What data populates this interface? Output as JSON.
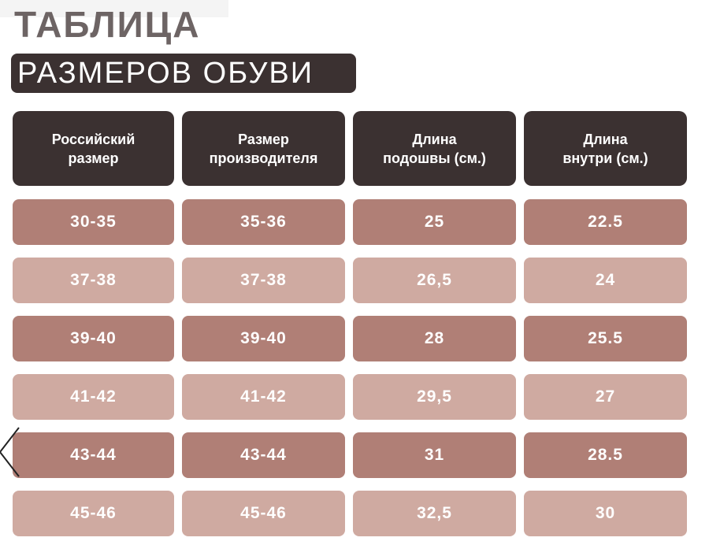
{
  "title": {
    "line1": "ТАБЛИЦА",
    "line2": "РАЗМЕРОВ ОБУВИ"
  },
  "table": {
    "headers": [
      "Российский\nразмер",
      "Размер\nпроизводителя",
      "Длина\nподошвы (см.)",
      "Длина\nвнутри  (см.)"
    ],
    "rows": [
      [
        "30-35",
        "35-36",
        "25",
        "22.5"
      ],
      [
        "37-38",
        "37-38",
        "26,5",
        "24"
      ],
      [
        "39-40",
        "39-40",
        "28",
        "25.5"
      ],
      [
        "41-42",
        "41-42",
        "29,5",
        "27"
      ],
      [
        "43-44",
        "43-44",
        "31",
        "28.5"
      ],
      [
        "45-46",
        "45-46",
        "32,5",
        "30"
      ]
    ]
  },
  "icons": {
    "prev": "chevron-left-icon"
  },
  "colors": {
    "header_bg": "#3b3131",
    "row_dark": "#b07f76",
    "row_light": "#cfaaa1",
    "title_grey": "#6d6464"
  }
}
